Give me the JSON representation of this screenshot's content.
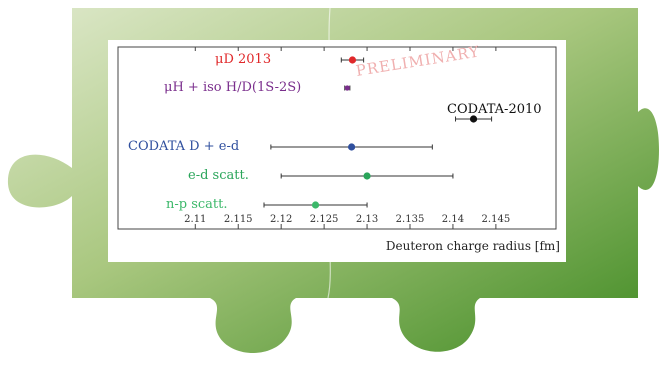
{
  "colors": {
    "puzzle_light": "#c9dcaa",
    "puzzle_dark": "#3f8a22",
    "muD": "#e0282a",
    "muH": "#7a2e8c",
    "codata2010": "#111111",
    "codataDed": "#2f4f9e",
    "ed": "#2aa55a",
    "np": "#3cb86a"
  },
  "watermark": "PRELIMINARY",
  "chart_data": {
    "type": "scatter",
    "xlabel": "Deuteron charge radius [fm]",
    "xlim": [
      2.101,
      2.152
    ],
    "xticks": [
      "2.11",
      "2.115",
      "2.12",
      "2.125",
      "2.13",
      "2.135",
      "2.14",
      "2.145"
    ],
    "series": [
      {
        "name": "μD 2013",
        "value": 2.1283,
        "err_low": 0.0013,
        "err_high": 0.0013,
        "color": "#e0282a"
      },
      {
        "name": "μH + iso H/D(1S-2S)",
        "value": 2.1277,
        "err_low": 0.0003,
        "err_high": 0.0003,
        "color": "#7a2e8c"
      },
      {
        "name": "CODATA-2010",
        "value": 2.1424,
        "err_low": 0.0021,
        "err_high": 0.0021,
        "color": "#111111"
      },
      {
        "name": "CODATA D + e-d",
        "value": 2.1282,
        "err_low": 0.0094,
        "err_high": 0.0094,
        "color": "#2f4f9e"
      },
      {
        "name": "e-d scatt.",
        "value": 2.13,
        "err_low": 0.01,
        "err_high": 0.01,
        "color": "#2aa55a"
      },
      {
        "name": "n-p scatt.",
        "value": 2.124,
        "err_low": 0.006,
        "err_high": 0.006,
        "color": "#3cb86a"
      }
    ]
  }
}
